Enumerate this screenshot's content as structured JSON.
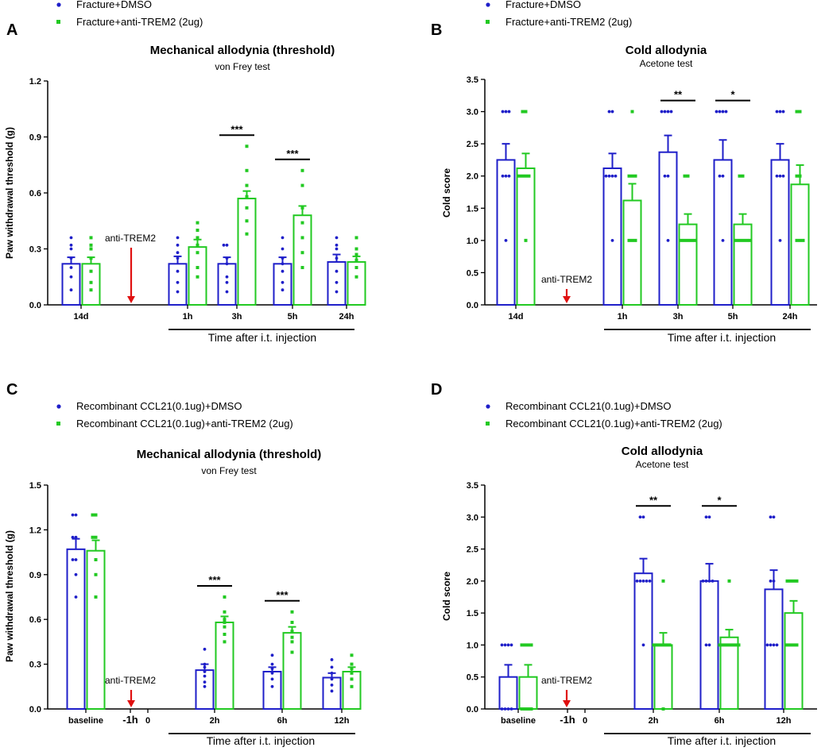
{
  "colors": {
    "dmso": "#1f1fc9",
    "trem": "#22c922",
    "arrow": "#e01010",
    "axis": "#000000"
  },
  "chart_data": [
    {
      "panel": "A",
      "type": "bar",
      "title": "Mechanical allodynia (threshold)",
      "subtitle": "von Frey test",
      "ylabel": "Paw withdrawal threshold (g)",
      "ylim": [
        0,
        1.2
      ],
      "yticks": [
        "0.0",
        "0.3",
        "0.6",
        "0.9",
        "1.2"
      ],
      "categories": [
        "14d",
        "1h",
        "3h",
        "5h",
        "24h"
      ],
      "injection_label": "anti-TREM2",
      "xcaption": "Time after i.t. injection",
      "legend": [
        "Fracture+DMSO",
        "Fracture+anti-TREM2 (2ug)"
      ],
      "series": [
        {
          "name": "Fracture+DMSO",
          "values": [
            0.22,
            0.22,
            0.22,
            0.22,
            0.23
          ],
          "sem": [
            0.035,
            0.04,
            0.035,
            0.035,
            0.04
          ],
          "points": [
            [
              0.36,
              0.32,
              0.3,
              0.25,
              0.2,
              0.15,
              0.08
            ],
            [
              0.36,
              0.32,
              0.28,
              0.25,
              0.18,
              0.12,
              0.07
            ],
            [
              0.32,
              0.32,
              0.25,
              0.22,
              0.15,
              0.12,
              0.07
            ],
            [
              0.36,
              0.3,
              0.25,
              0.22,
              0.18,
              0.12,
              0.08
            ],
            [
              0.36,
              0.32,
              0.3,
              0.25,
              0.18,
              0.12,
              0.07
            ]
          ]
        },
        {
          "name": "Fracture+anti-TREM2 (2ug)",
          "values": [
            0.22,
            0.31,
            0.57,
            0.48,
            0.23
          ],
          "sem": [
            0.035,
            0.04,
            0.04,
            0.05,
            0.03
          ],
          "points": [
            [
              0.36,
              0.32,
              0.3,
              0.25,
              0.18,
              0.12,
              0.08
            ],
            [
              0.44,
              0.4,
              0.36,
              0.32,
              0.28,
              0.2,
              0.15
            ],
            [
              0.85,
              0.72,
              0.64,
              0.58,
              0.52,
              0.45,
              0.38
            ],
            [
              0.72,
              0.64,
              0.52,
              0.44,
              0.36,
              0.28,
              0.2
            ],
            [
              0.36,
              0.3,
              0.27,
              0.24,
              0.2,
              0.15
            ]
          ]
        }
      ],
      "significance": [
        {
          "category": "3h",
          "label": "***"
        },
        {
          "category": "5h",
          "label": "***"
        }
      ]
    },
    {
      "panel": "B",
      "type": "bar",
      "title": "Cold allodynia",
      "subtitle": "Acetone test",
      "ylabel": "Cold score",
      "ylim": [
        0,
        3.5
      ],
      "yticks": [
        "0.0",
        "0.5",
        "1.0",
        "1.5",
        "2.0",
        "2.5",
        "3.0",
        "3.5"
      ],
      "categories": [
        "14d",
        "1h",
        "3h",
        "5h",
        "24h"
      ],
      "injection_label": "anti-TREM2",
      "xcaption": "Time after i.t. injection",
      "legend": [
        "Fracture+DMSO",
        "Fracture+anti-TREM2 (2ug)"
      ],
      "series": [
        {
          "name": "Fracture+DMSO",
          "values": [
            2.25,
            2.12,
            2.37,
            2.25,
            2.25
          ],
          "sem": [
            0.25,
            0.23,
            0.26,
            0.31,
            0.25
          ],
          "points": [
            [
              3,
              3,
              3,
              2,
              2,
              2,
              1
            ],
            [
              3,
              3,
              2,
              2,
              2,
              2,
              1
            ],
            [
              3,
              3,
              3,
              3,
              2,
              2,
              1
            ],
            [
              3,
              3,
              3,
              3,
              2,
              2,
              1
            ],
            [
              3,
              3,
              3,
              2,
              2,
              2,
              1
            ]
          ]
        },
        {
          "name": "Fracture+anti-TREM2 (2ug)",
          "values": [
            2.12,
            1.62,
            1.25,
            1.25,
            1.87
          ],
          "sem": [
            0.23,
            0.26,
            0.16,
            0.16,
            0.3
          ],
          "points": [
            [
              3,
              3,
              2,
              2,
              2,
              2,
              1
            ],
            [
              3,
              2,
              2,
              2,
              1,
              1,
              1
            ],
            [
              2,
              2,
              1,
              1,
              1,
              1,
              1
            ],
            [
              2,
              2,
              1,
              1,
              1,
              1,
              1
            ],
            [
              3,
              3,
              2,
              2,
              1,
              1,
              1
            ]
          ]
        }
      ],
      "significance": [
        {
          "category": "3h",
          "label": "**"
        },
        {
          "category": "5h",
          "label": "*"
        }
      ]
    },
    {
      "panel": "C",
      "type": "bar",
      "title": "Mechanical allodynia (threshold)",
      "subtitle": "von Frey test",
      "ylabel": "Paw withdrawal threshold (g)",
      "ylim": [
        0,
        1.5
      ],
      "yticks": [
        "0.0",
        "0.3",
        "0.6",
        "0.9",
        "1.2",
        "1.5"
      ],
      "categories": [
        "baseline",
        "2h",
        "6h",
        "12h"
      ],
      "extra_ticks": [
        "-1h",
        "0"
      ],
      "injection_label": "anti-TREM2",
      "xcaption": "Time after i.t. injection",
      "legend": [
        "Recombinant CCL21(0.1ug)+DMSO",
        "Recombinant CCL21(0.1ug)+anti-TREM2 (2ug)"
      ],
      "series": [
        {
          "name": "Recombinant CCL21(0.1ug)+DMSO",
          "values": [
            1.07,
            0.26,
            0.25,
            0.21
          ],
          "sem": [
            0.07,
            0.04,
            0.03,
            0.03
          ],
          "points": [
            [
              1.3,
              1.3,
              1.15,
              1.15,
              1.0,
              1.0,
              0.9,
              0.75
            ],
            [
              0.4,
              0.3,
              0.28,
              0.25,
              0.22,
              0.18,
              0.15
            ],
            [
              0.36,
              0.3,
              0.27,
              0.24,
              0.2,
              0.15
            ],
            [
              0.33,
              0.28,
              0.24,
              0.2,
              0.16,
              0.12
            ]
          ]
        },
        {
          "name": "Recombinant CCL21(0.1ug)+anti-TREM2 (2ug)",
          "values": [
            1.06,
            0.58,
            0.51,
            0.25
          ],
          "sem": [
            0.07,
            0.04,
            0.04,
            0.03
          ],
          "points": [
            [
              1.3,
              1.3,
              1.15,
              1.15,
              1.0,
              0.9,
              0.75
            ],
            [
              0.75,
              0.65,
              0.6,
              0.58,
              0.55,
              0.5,
              0.45
            ],
            [
              0.65,
              0.58,
              0.52,
              0.48,
              0.45,
              0.38
            ],
            [
              0.36,
              0.3,
              0.27,
              0.24,
              0.2,
              0.15
            ]
          ]
        }
      ],
      "significance": [
        {
          "category": "2h",
          "label": "***"
        },
        {
          "category": "6h",
          "label": "***"
        }
      ]
    },
    {
      "panel": "D",
      "type": "bar",
      "title": "Cold allodynia",
      "subtitle": "Acetone test",
      "ylabel": "Cold score",
      "ylim": [
        0,
        3.5
      ],
      "yticks": [
        "0.0",
        "0.5",
        "1.0",
        "1.5",
        "2.0",
        "2.5",
        "3.0",
        "3.5"
      ],
      "categories": [
        "baseline",
        "2h",
        "6h",
        "12h"
      ],
      "extra_ticks": [
        "-1h",
        "0"
      ],
      "injection_label": "anti-TREM2",
      "xcaption": "Time after i.t. injection",
      "legend": [
        "Recombinant CCL21(0.1ug)+DMSO",
        "Recombinant CCL21(0.1ug)+anti-TREM2 (2ug)"
      ],
      "series": [
        {
          "name": "Recombinant CCL21(0.1ug)+DMSO",
          "values": [
            0.5,
            2.12,
            2.0,
            1.87
          ],
          "sem": [
            0.19,
            0.23,
            0.27,
            0.3
          ],
          "points": [
            [
              1,
              1,
              1,
              1,
              0,
              0,
              0,
              0
            ],
            [
              3,
              3,
              2,
              2,
              2,
              2,
              2,
              1
            ],
            [
              3,
              3,
              2,
              2,
              2,
              2,
              1,
              1
            ],
            [
              3,
              3,
              2,
              2,
              1,
              1,
              1,
              1
            ]
          ]
        },
        {
          "name": "Recombinant CCL21(0.1ug)+anti-TREM2 (2ug)",
          "values": [
            0.5,
            1.0,
            1.12,
            1.5
          ],
          "sem": [
            0.19,
            0.19,
            0.12,
            0.19
          ],
          "points": [
            [
              1,
              1,
              1,
              1,
              0,
              0,
              0,
              0
            ],
            [
              2,
              1,
              1,
              1,
              1,
              1,
              1,
              0
            ],
            [
              2,
              1,
              1,
              1,
              1,
              1,
              1,
              1
            ],
            [
              2,
              2,
              2,
              2,
              1,
              1,
              1,
              1
            ]
          ]
        }
      ],
      "significance": [
        {
          "category": "2h",
          "label": "**"
        },
        {
          "category": "6h",
          "label": "*"
        }
      ]
    }
  ]
}
